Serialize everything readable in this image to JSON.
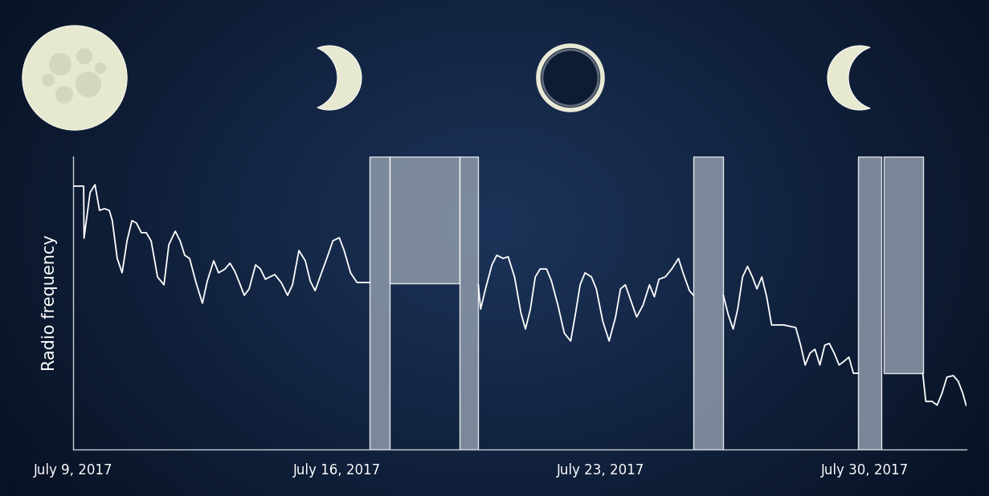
{
  "chart_data": {
    "type": "line",
    "y_label": "Radio frequency",
    "color": "#ffffff",
    "line_style": "solid",
    "grid": false,
    "tick_labels": "x",
    "xlim": [
      0,
      23.7
    ],
    "ylim": [
      0,
      100
    ],
    "xticks": [
      {
        "value": 0,
        "label": "July 9, 2017"
      },
      {
        "value": 7,
        "label": "July 16, 2017"
      },
      {
        "value": 14,
        "label": "July 23, 2017"
      },
      {
        "value": 21,
        "label": "July 30, 2017"
      }
    ],
    "yticks": [],
    "x": [
      0,
      0.28,
      0.29,
      0.45,
      0.58,
      0.7,
      0.83,
      0.96,
      1.04,
      1.17,
      1.3,
      1.43,
      1.56,
      1.68,
      1.81,
      1.94,
      2.07,
      2.24,
      2.41,
      2.54,
      2.71,
      2.84,
      2.96,
      3.09,
      3.26,
      3.43,
      3.56,
      3.73,
      3.86,
      4.03,
      4.16,
      4.29,
      4.41,
      4.54,
      4.67,
      4.84,
      4.97,
      5.1,
      5.22,
      5.35,
      5.52,
      5.69,
      5.82,
      5.99,
      6.16,
      6.29,
      6.42,
      6.59,
      6.76,
      6.89,
      7.06,
      7.19,
      7.36,
      7.53,
      7.87,
      9.0,
      10.75,
      10.81,
      10.94,
      11.11,
      11.24,
      11.41,
      11.54,
      11.71,
      11.88,
      12.0,
      12.13,
      12.26,
      12.39,
      12.56,
      12.69,
      12.86,
      13.03,
      13.2,
      13.33,
      13.45,
      13.58,
      13.75,
      13.88,
      14.05,
      14.22,
      14.39,
      14.52,
      14.65,
      14.82,
      14.95,
      15.12,
      15.29,
      15.42,
      15.54,
      15.71,
      15.88,
      16.06,
      16.18,
      16.35,
      16.46,
      16.85,
      17.25,
      17.38,
      17.51,
      17.63,
      17.76,
      17.89,
      18.02,
      18.14,
      18.27,
      18.4,
      18.53,
      18.85,
      19.17,
      19.3,
      19.42,
      19.55,
      19.68,
      19.81,
      19.94,
      20.06,
      20.19,
      20.32,
      20.45,
      20.58,
      20.7,
      20.83,
      21.7,
      22.54,
      22.62,
      22.79,
      22.92,
      23.05,
      23.18,
      23.35,
      23.48,
      23.6,
      23.69
    ],
    "values": [
      89.9,
      89.9,
      72.1,
      87.7,
      90.4,
      81.6,
      82.2,
      81.6,
      78.1,
      65.2,
      60.3,
      71.2,
      78.1,
      77.3,
      74.0,
      74.0,
      71.2,
      58.9,
      56.2,
      69.9,
      74.5,
      71.2,
      66.3,
      65.2,
      57.0,
      49.9,
      57.5,
      64.4,
      60.3,
      61.6,
      63.6,
      60.8,
      57.0,
      52.6,
      54.8,
      63.0,
      61.6,
      58.1,
      58.9,
      59.7,
      57.0,
      52.6,
      56.2,
      67.9,
      64.4,
      57.5,
      54.2,
      60.3,
      66.3,
      71.2,
      72.3,
      67.9,
      60.3,
      57.0,
      57.0,
      null,
      56.2,
      47.9,
      54.8,
      63.0,
      66.3,
      65.2,
      65.8,
      58.9,
      46.6,
      41.1,
      47.9,
      58.9,
      61.6,
      61.6,
      57.5,
      49.3,
      39.7,
      37.0,
      46.6,
      56.2,
      60.3,
      58.9,
      54.8,
      43.8,
      37.0,
      45.2,
      54.8,
      56.2,
      49.9,
      45.2,
      49.3,
      56.2,
      52.1,
      58.1,
      58.9,
      61.6,
      65.2,
      60.3,
      54.2,
      52.6,
      null,
      52.6,
      46.0,
      41.1,
      47.9,
      58.9,
      62.5,
      58.9,
      54.8,
      58.9,
      52.1,
      42.5,
      42.5,
      41.6,
      35.6,
      28.8,
      32.9,
      34.2,
      28.8,
      35.6,
      36.2,
      32.9,
      28.8,
      30.1,
      31.5,
      26.0,
      26.0,
      null,
      26.0,
      16.4,
      16.4,
      15.1,
      19.2,
      24.7,
      25.2,
      23.3,
      19.2,
      15.1
    ],
    "shaded_spans": [
      {
        "x": [
          7.87,
          8.4
        ],
        "y": [
          0,
          100
        ]
      },
      {
        "x": [
          8.4,
          10.26
        ],
        "y": [
          56.7,
          100
        ]
      },
      {
        "x": [
          10.26,
          10.75
        ],
        "y": [
          0,
          100
        ]
      },
      {
        "x": [
          16.46,
          17.25
        ],
        "y": [
          0,
          100
        ]
      },
      {
        "x": [
          20.83,
          21.45
        ],
        "y": [
          0,
          100
        ]
      },
      {
        "x": [
          21.51,
          22.54
        ],
        "y": [
          26.0,
          100
        ]
      }
    ]
  }
}
